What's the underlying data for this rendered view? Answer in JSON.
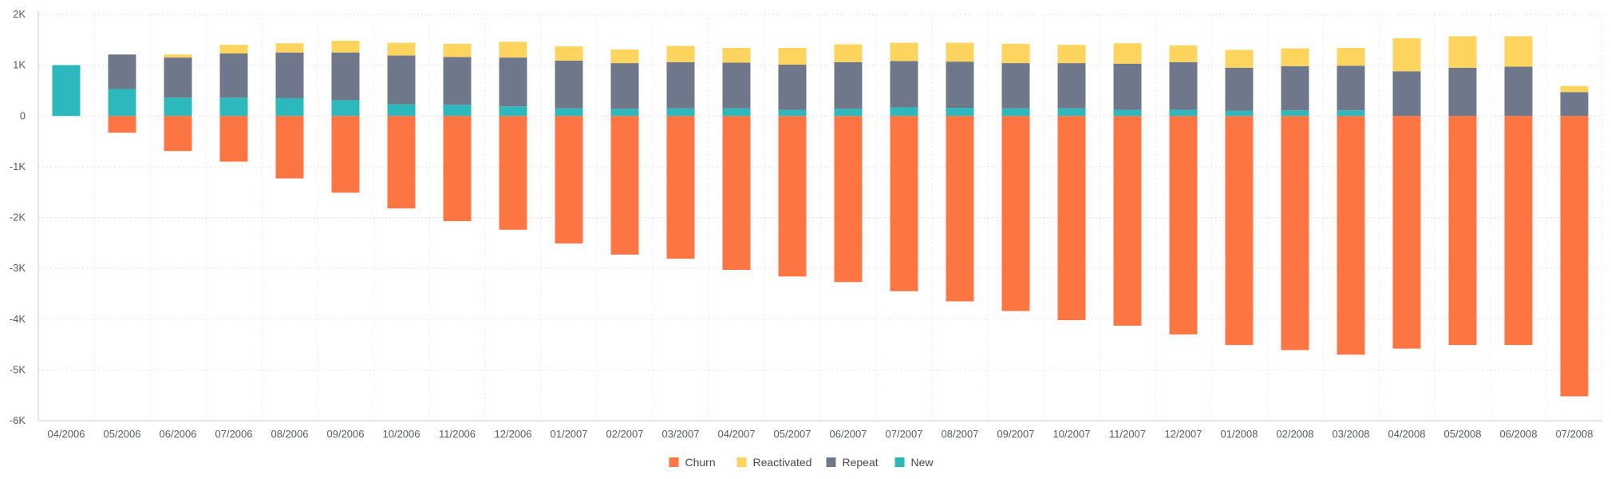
{
  "chart_data": {
    "type": "bar",
    "stacked": true,
    "ylim": [
      -6000,
      2000
    ],
    "yticks": [
      {
        "value": 2000,
        "label": "2K"
      },
      {
        "value": 1000,
        "label": "1K"
      },
      {
        "value": 0,
        "label": "0"
      },
      {
        "value": -1000,
        "label": "-1K"
      },
      {
        "value": -2000,
        "label": "-2K"
      },
      {
        "value": -3000,
        "label": "-3K"
      },
      {
        "value": -4000,
        "label": "-4K"
      },
      {
        "value": -5000,
        "label": "-5K"
      },
      {
        "value": -6000,
        "label": "-6K"
      }
    ],
    "grid": true,
    "legend_position": "bottom-center",
    "categories": [
      "04/2006",
      "05/2006",
      "06/2006",
      "07/2006",
      "08/2006",
      "09/2006",
      "10/2006",
      "11/2006",
      "12/2006",
      "01/2007",
      "02/2007",
      "03/2007",
      "04/2007",
      "05/2007",
      "06/2007",
      "07/2007",
      "08/2007",
      "09/2007",
      "10/2007",
      "11/2007",
      "12/2007",
      "01/2008",
      "02/2008",
      "03/2008",
      "04/2008",
      "05/2008",
      "06/2008",
      "07/2008"
    ],
    "series": [
      {
        "name": "Churn",
        "color": "#fd7542",
        "values": [
          0,
          -330,
          -690,
          -900,
          -1230,
          -1510,
          -1820,
          -2070,
          -2240,
          -2510,
          -2730,
          -2810,
          -3030,
          -3160,
          -3270,
          -3450,
          -3650,
          -3840,
          -4020,
          -4130,
          -4300,
          -4510,
          -4610,
          -4700,
          -4580,
          -4510,
          -4510,
          -5520
        ]
      },
      {
        "name": "Reactivated",
        "color": "#fdd45e",
        "values": [
          0,
          0,
          60,
          170,
          180,
          230,
          250,
          260,
          310,
          280,
          270,
          320,
          290,
          330,
          350,
          360,
          370,
          380,
          360,
          400,
          330,
          350,
          350,
          350,
          650,
          620,
          600,
          120
        ]
      },
      {
        "name": "Repeat",
        "color": "#6f788a",
        "values": [
          0,
          680,
          790,
          870,
          900,
          940,
          960,
          940,
          960,
          940,
          900,
          910,
          900,
          890,
          920,
          910,
          910,
          890,
          890,
          910,
          940,
          850,
          870,
          880,
          880,
          950,
          970,
          470
        ]
      },
      {
        "name": "New",
        "color": "#2cb8bc",
        "values": [
          1000,
          530,
          360,
          360,
          350,
          310,
          230,
          220,
          190,
          150,
          140,
          150,
          150,
          120,
          140,
          170,
          160,
          150,
          150,
          120,
          120,
          100,
          110,
          110,
          0,
          0,
          0,
          0
        ]
      }
    ]
  }
}
